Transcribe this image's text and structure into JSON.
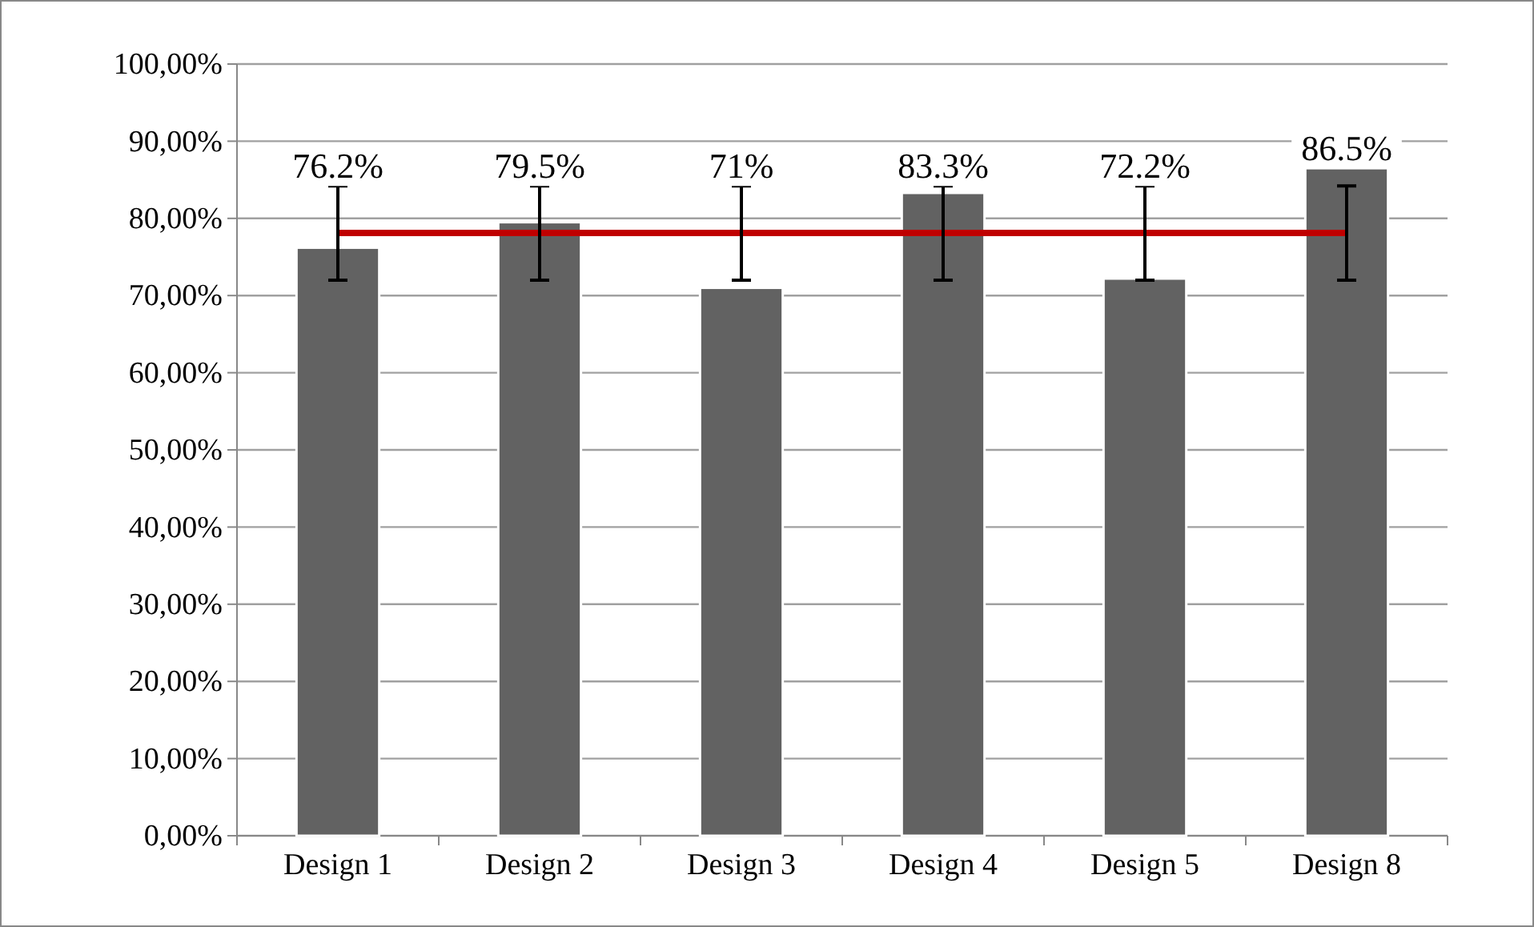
{
  "chart_data": {
    "type": "bar",
    "categories": [
      "Design 1",
      "Design 2",
      "Design 3",
      "Design 4",
      "Design 5",
      "Design 8"
    ],
    "values": [
      76.2,
      79.5,
      71,
      83.3,
      72.2,
      86.5
    ],
    "color": "#626262",
    "errors": [
      [
        72,
        84.2
      ],
      [
        72,
        84.2
      ],
      [
        72,
        84.2
      ],
      [
        72,
        84.2
      ],
      [
        72,
        84.2
      ],
      [
        72,
        84.2
      ]
    ],
    "value_labels": [
      "76.2%",
      "79.5%",
      "71%",
      "83.3%",
      "72.2%",
      "86.5%"
    ],
    "ref_lines": [
      {
        "axis": "y",
        "value": 78.1,
        "color": "#c00000"
      }
    ],
    "ylim": [
      0,
      100
    ],
    "yticks": [
      {
        "value": 0,
        "label": "0,00%"
      },
      {
        "value": 10,
        "label": "10,00%"
      },
      {
        "value": 20,
        "label": "20,00%"
      },
      {
        "value": 30,
        "label": "30,00%"
      },
      {
        "value": 40,
        "label": "40,00%"
      },
      {
        "value": 50,
        "label": "50,00%"
      },
      {
        "value": 60,
        "label": "60,00%"
      },
      {
        "value": 70,
        "label": "70,00%"
      },
      {
        "value": 80,
        "label": "80,00%"
      },
      {
        "value": 90,
        "label": "90,00%"
      },
      {
        "value": 100,
        "label": "100,00%"
      }
    ],
    "grid": "y"
  }
}
